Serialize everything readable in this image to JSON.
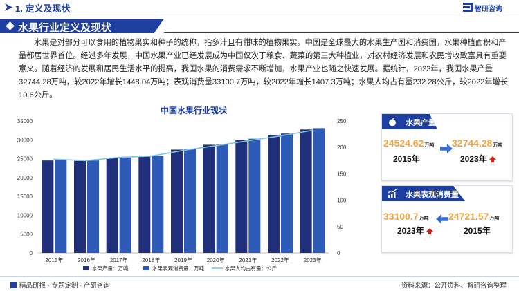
{
  "header": {
    "section_title": "1. 定义及现状",
    "logo_text": "智研咨询",
    "logo_icon": "zhiyan-logo-icon"
  },
  "banner": {
    "title": "水果行业定义及现状"
  },
  "intro": {
    "paragraph": "水果是对部分可以食用的植物果实和种子的统称，指多汁且有甜味的植物果实。中国是全球最大的水果生产国和消费国，水果种植面积和产量都居世界首位。经过多年发展，中国水果产业已经发展成为中国仅次于粮食、蔬菜的第三大种植业，对农村经济发展和农民增收致富具有重要意义。随着经济的发展和居民生活水平的提高，我国水果的消费需求不断增加，水果产业也随之快速发展。据统计，2023年，我国水果产量32744.28万吨，较2022年增长1448.04万吨；表观消费量33100.7万吨，较2022年增长1407.3万吨；水果人均占有量232.28公斤，较2022年增长10.6公斤。"
  },
  "chart_data": {
    "type": "bar",
    "title": "中国水果行业现状",
    "categories": [
      "2015年",
      "2016年",
      "2017年",
      "2018年",
      "2019年",
      "2020年",
      "2021年",
      "2022年",
      "2023年"
    ],
    "series": [
      {
        "name": "水果产量：万吨",
        "type": "bar",
        "axis": "left",
        "color": "#1f2f7a",
        "values": [
          24524.62,
          24405.24,
          25241.9,
          25688.35,
          27400.84,
          28692.36,
          29970.2,
          31296.24,
          32744.28
        ]
      },
      {
        "name": "水果表观消费量：万吨",
        "type": "bar",
        "axis": "left",
        "color": "#2e5bb8",
        "values": [
          24721.57,
          24518.1,
          25300.0,
          25800.0,
          27500.0,
          28800.0,
          30300.0,
          31693.4,
          33100.7
        ]
      },
      {
        "name": "水果人均占有量：公斤",
        "type": "line",
        "axis": "right",
        "color": "#7fc4e0",
        "values": [
          177.5,
          175.0,
          181.0,
          183.5,
          194.3,
          203.2,
          212.5,
          221.68,
          232.28
        ]
      }
    ],
    "ylim_left": [
      0,
      35000
    ],
    "yticks_left": [
      0,
      5000,
      10000,
      15000,
      20000,
      25000,
      30000,
      35000
    ],
    "ylim_right": [
      0,
      250
    ],
    "yticks_right": [
      0,
      50,
      100,
      150,
      200,
      250
    ],
    "legend_position": "bottom",
    "grid": false
  },
  "cards": {
    "production": {
      "title": "水果产量",
      "icon": "fruit-icon",
      "from_value": "24524.62",
      "from_unit": "万吨",
      "from_year": "2015年",
      "to_value": "32744.28",
      "to_unit": "万吨",
      "to_year": "2023年"
    },
    "consumption": {
      "title": "水果表观消费量",
      "icon": "growth-chart-icon",
      "from_value": "33100.7",
      "from_unit": "万吨",
      "from_year": "2023年",
      "to_value": "24721.57",
      "to_unit": "万吨",
      "to_year": "2015年"
    }
  },
  "footer": {
    "left_text": "精品研报 · 专题定制 · 产研咨询",
    "right_text": "资料来源：公开资料、智研咨询整理"
  },
  "colors": {
    "brand": "#1e3fa0",
    "highlight_number": "#f2a33a",
    "up_arrow": "#d9261c"
  }
}
